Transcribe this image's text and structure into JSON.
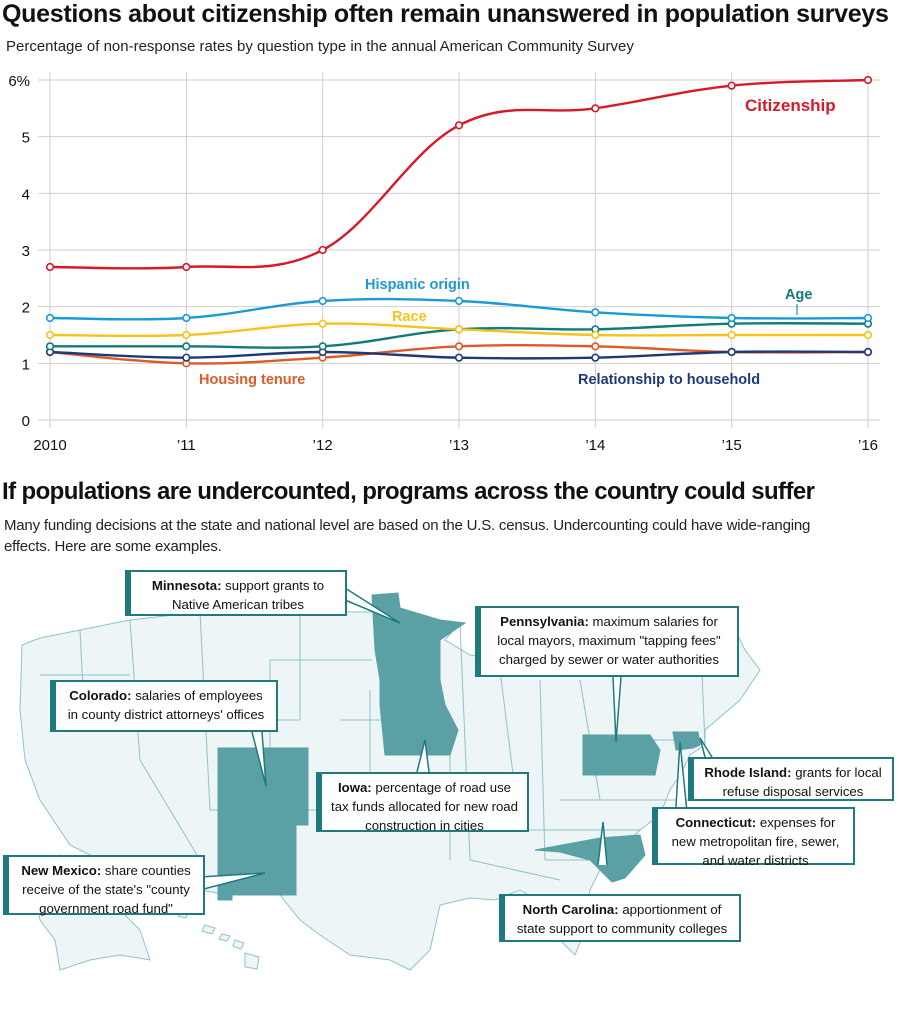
{
  "section1": {
    "title": "Questions about citizenship often remain unanswered in population surveys",
    "subtitle": "Percentage of non-response rates by question type in the annual American Community Survey"
  },
  "chart_data": {
    "type": "line",
    "title": "Questions about citizenship often remain unanswered in population surveys",
    "subtitle": "Percentage of non-response rates by question type in the annual American Community Survey",
    "xlabel": "",
    "ylabel": "",
    "x": [
      "2010",
      "’11",
      "’12",
      "’13",
      "’14",
      "’15",
      "’16"
    ],
    "y_ticks": [
      "0",
      "1",
      "2",
      "3",
      "4",
      "5",
      "6%"
    ],
    "ylim": [
      0,
      6
    ],
    "grid": true,
    "legend": "inline labels",
    "series": [
      {
        "name": "Citizenship",
        "color": "#d7192a",
        "values": [
          2.7,
          2.7,
          3.0,
          5.2,
          5.5,
          5.9,
          6.0
        ]
      },
      {
        "name": "Hispanic origin",
        "color": "#1a9ad6",
        "values": [
          1.8,
          1.8,
          2.1,
          2.1,
          1.9,
          1.8,
          1.8
        ]
      },
      {
        "name": "Race",
        "color": "#f7c21a",
        "values": [
          1.5,
          1.5,
          1.7,
          1.6,
          1.5,
          1.5,
          1.5
        ]
      },
      {
        "name": "Age",
        "color": "#137a7a",
        "values": [
          1.3,
          1.3,
          1.3,
          1.6,
          1.6,
          1.7,
          1.7
        ]
      },
      {
        "name": "Housing tenure",
        "color": "#de5a26",
        "values": [
          1.2,
          1.0,
          1.1,
          1.3,
          1.3,
          1.2,
          1.2
        ]
      },
      {
        "name": "Relationship to household",
        "color": "#1c3a78",
        "values": [
          1.2,
          1.1,
          1.2,
          1.1,
          1.1,
          1.2,
          1.2
        ]
      }
    ]
  },
  "section2": {
    "title": "If populations are undercounted, programs across the country could suffer",
    "subtitle": "Many funding decisions at the state and national level are based on the U.S. census. Undercounting could have wide-ranging effects. Here are some examples."
  },
  "map": {
    "highlight_color": "#5ba0a4",
    "base_color": "#eef5f6",
    "border_color": "#8fc3c6",
    "callouts": [
      {
        "state": "Minnesota",
        "text": "support grants to Native American tribes"
      },
      {
        "state": "Pennsylvania",
        "text": "maximum salaries for local mayors, maximum \"tapping fees\" charged by  sewer or water authorities"
      },
      {
        "state": "Colorado",
        "text": "salaries of employees in county district attorneys' offices"
      },
      {
        "state": "Iowa",
        "text": "percentage of road use tax funds allocated for new road construction in cities"
      },
      {
        "state": "Rhode Island",
        "text": "grants for local refuse disposal services"
      },
      {
        "state": "Connecticut",
        "text": "expenses for new metropolitan fire, sewer, and water districts"
      },
      {
        "state": "New Mexico",
        "text": "share counties receive of the state's \"county government road fund\""
      },
      {
        "state": "North Carolina",
        "text": "apportionment of state support to community colleges"
      }
    ]
  }
}
